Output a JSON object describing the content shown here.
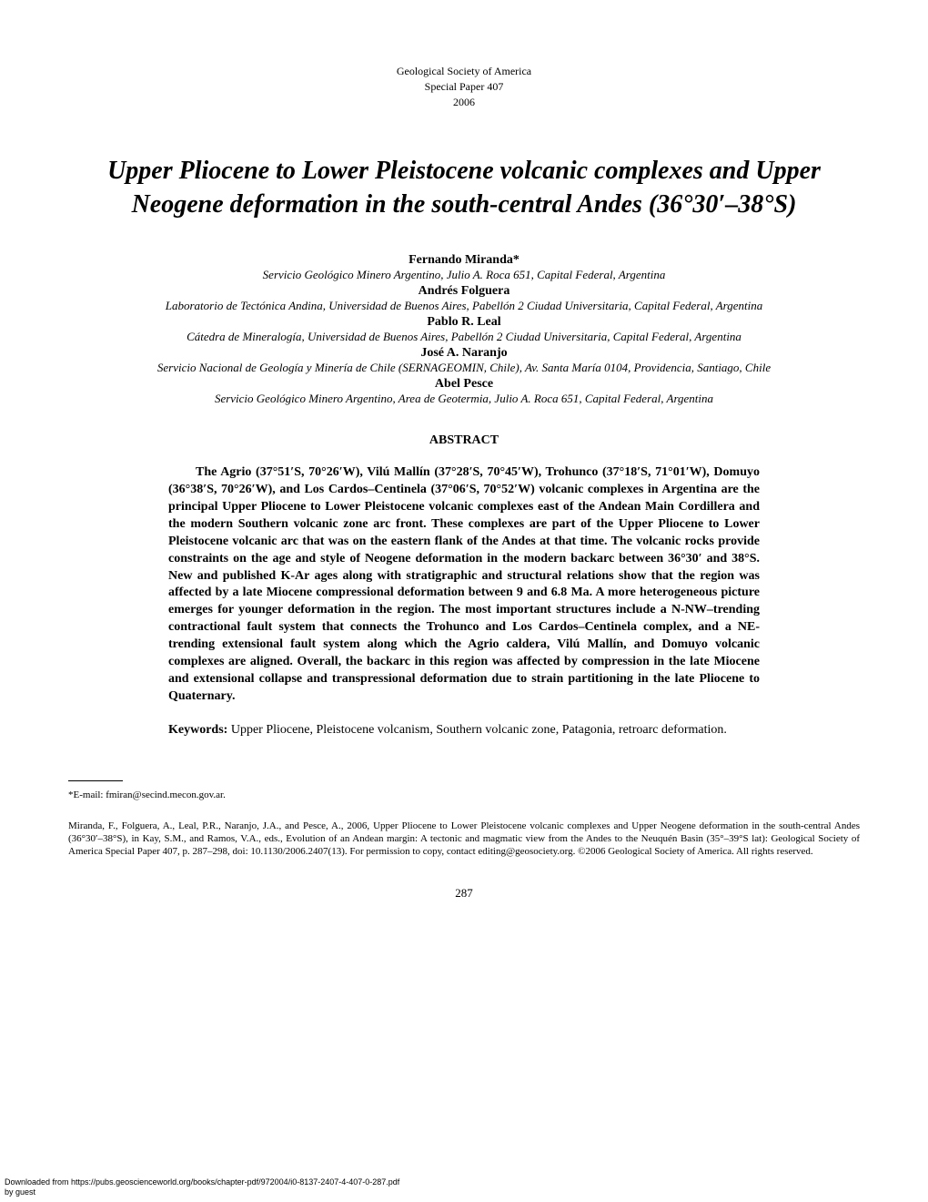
{
  "header": {
    "society": "Geological Society of America",
    "paper": "Special Paper 407",
    "year": "2006"
  },
  "title": "Upper Pliocene to Lower Pleistocene volcanic complexes and Upper Neogene deformation in the south-central Andes (36°30′–38°S)",
  "authors": [
    {
      "name": "Fernando Miranda*",
      "affiliation": "Servicio Geológico Minero Argentino, Julio A. Roca 651, Capital Federal, Argentina"
    },
    {
      "name": "Andrés Folguera",
      "affiliation": "Laboratorio de Tectónica Andina, Universidad de Buenos Aires, Pabellón 2 Ciudad Universitaria, Capital Federal, Argentina"
    },
    {
      "name": "Pablo R. Leal",
      "affiliation": "Cátedra de Mineralogía, Universidad de Buenos Aires, Pabellón 2 Ciudad Universitaria, Capital Federal, Argentina"
    },
    {
      "name": "José A. Naranjo",
      "affiliation": "Servicio Nacional de Geología y Minería de Chile (SERNAGEOMIN, Chile), Av. Santa María 0104, Providencia, Santiago, Chile"
    },
    {
      "name": "Abel Pesce",
      "affiliation": "Servicio Geológico Minero Argentino, Area de Geotermia, Julio A. Roca 651, Capital Federal, Argentina"
    }
  ],
  "abstract": {
    "heading": "ABSTRACT",
    "body": "The Agrio (37°51′S, 70°26′W), Vilú Mallín (37°28′S, 70°45′W), Trohunco (37°18′S, 71°01′W), Domuyo (36°38′S, 70°26′W), and Los Cardos–Centinela (37°06′S, 70°52′W) volcanic complexes in Argentina are the principal Upper Pliocene to Lower Pleistocene volcanic complexes east of the Andean Main Cordillera and the modern Southern volcanic zone arc front. These complexes are part of the Upper Pliocene to Lower Pleistocene volcanic arc that was on the eastern flank of the Andes at that time. The volcanic rocks provide constraints on the age and style of Neogene deformation in the modern backarc between 36°30′ and 38°S. New and published K-Ar ages along with stratigraphic and structural relations show that the region was affected by a late Miocene compressional deformation between 9 and 6.8 Ma. A more heterogeneous picture emerges for younger deformation in the region. The most important structures include a N-NW–trending contractional fault system that connects the Trohunco and Los Cardos–Centinela complex, and a NE-trending extensional fault system along which the Agrio caldera, Vilú Mallín, and Domuyo volcanic complexes are aligned. Overall, the backarc in this region was affected by compression in the late Miocene and extensional collapse and transpressional deformation due to strain partitioning in the late Pliocene to Quaternary."
  },
  "keywords": {
    "label": "Keywords:",
    "text": " Upper Pliocene, Pleistocene volcanism, Southern volcanic zone, Patagonia, retroarc deformation."
  },
  "footnote": "*E-mail: fmiran@secind.mecon.gov.ar.",
  "citation": "Miranda, F., Folguera, A., Leal, P.R., Naranjo, J.A., and Pesce, A., 2006, Upper Pliocene to Lower Pleistocene volcanic complexes and Upper Neogene deformation in the south-central Andes (36°30′–38°S), in Kay, S.M., and Ramos, V.A., eds., Evolution of an Andean margin: A tectonic and magmatic view from the Andes to the Neuquén Basin (35°–39°S lat): Geological Society of America Special Paper 407, p. 287–298, doi: 10.1130/2006.2407(13). For permission to copy, contact editing@geosociety.org. ©2006 Geological Society of America. All rights reserved.",
  "page_number": "287",
  "download": {
    "line1": "Downloaded from https://pubs.geoscienceworld.org/books/chapter-pdf/972004/i0-8137-2407-4-407-0-287.pdf",
    "line2": "by guest"
  }
}
